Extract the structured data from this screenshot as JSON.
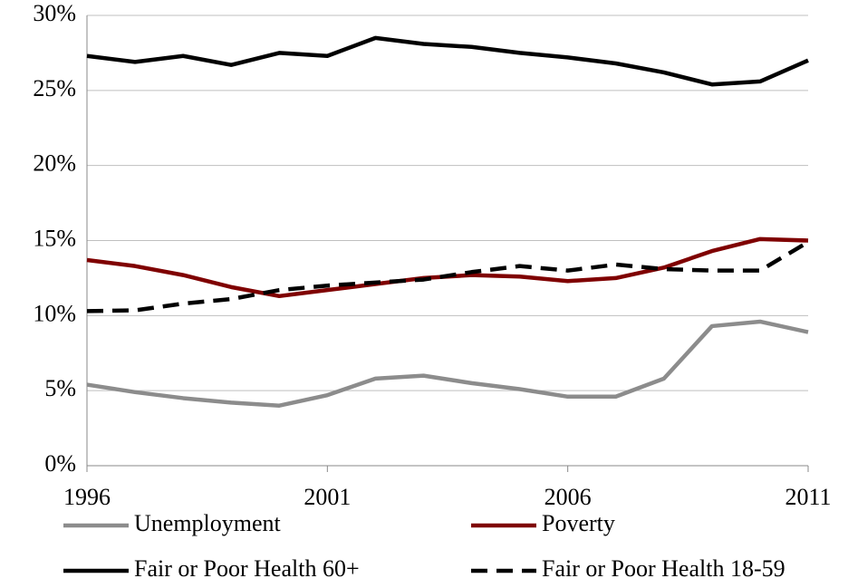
{
  "chart_data": {
    "type": "line",
    "x": [
      1996,
      1997,
      1998,
      1999,
      2000,
      2001,
      2002,
      2003,
      2004,
      2005,
      2006,
      2007,
      2008,
      2009,
      2010,
      2011
    ],
    "xlim": [
      1996,
      2011
    ],
    "xticks": [
      1996,
      2001,
      2006,
      2011
    ],
    "ylim": [
      0,
      30
    ],
    "yticks": [
      {
        "value": 0,
        "label": "0%"
      },
      {
        "value": 5,
        "label": "5%"
      },
      {
        "value": 10,
        "label": "10%"
      },
      {
        "value": 15,
        "label": "15%"
      },
      {
        "value": 20,
        "label": "20%"
      },
      {
        "value": 25,
        "label": "25%"
      },
      {
        "value": 30,
        "label": "30%"
      }
    ],
    "grid": true,
    "legend": "bottom",
    "series": [
      {
        "name": "Unemployment",
        "color": "#8c8c8c",
        "dashed": false,
        "values": [
          5.4,
          4.9,
          4.5,
          4.2,
          4.0,
          4.7,
          5.8,
          6.0,
          5.5,
          5.1,
          4.6,
          4.6,
          5.8,
          9.3,
          9.6,
          8.9
        ]
      },
      {
        "name": "Poverty",
        "color": "#7f0000",
        "dashed": false,
        "values": [
          13.7,
          13.3,
          12.7,
          11.9,
          11.3,
          11.7,
          12.1,
          12.5,
          12.7,
          12.6,
          12.3,
          12.5,
          13.2,
          14.3,
          15.1,
          15.0
        ]
      },
      {
        "name": "Fair or Poor Health 60+",
        "color": "#000000",
        "dashed": false,
        "values": [
          27.3,
          26.9,
          27.3,
          26.7,
          27.5,
          27.3,
          28.5,
          28.1,
          27.9,
          27.5,
          27.2,
          26.8,
          26.2,
          25.4,
          25.6,
          27.0
        ]
      },
      {
        "name": "Fair or Poor Health 18-59",
        "color": "#000000",
        "dashed": true,
        "values": [
          10.3,
          10.35,
          10.8,
          11.1,
          11.7,
          12.0,
          12.2,
          12.4,
          12.9,
          13.3,
          13.0,
          13.4,
          13.1,
          13.0,
          13.0,
          14.9
        ]
      }
    ]
  }
}
